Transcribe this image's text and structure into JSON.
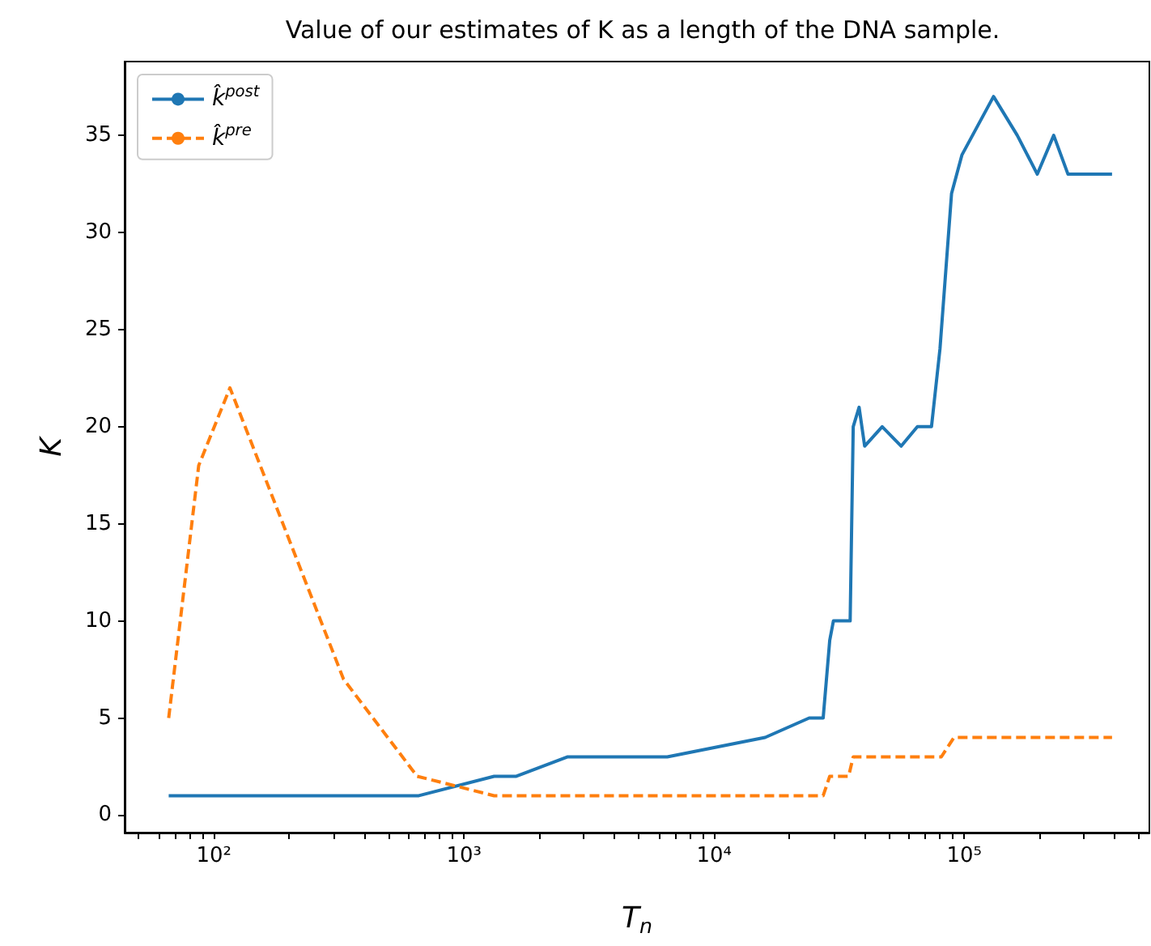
{
  "chart_data": {
    "type": "line",
    "title": "Value of our estimates of K as a length of the DNA sample.",
    "xlabel": "T$_{n}$",
    "ylabel": "K",
    "log": "x",
    "grid": false,
    "legend": "top left",
    "xlim": [
      44,
      550000
    ],
    "ylim": [
      -0.9,
      38.8
    ],
    "xticks": [
      {
        "value": 50,
        "label": null
      },
      {
        "value": 60,
        "label": null
      },
      {
        "value": 70,
        "label": null
      },
      {
        "value": 80,
        "label": null
      },
      {
        "value": 90,
        "label": null
      },
      {
        "value": 100,
        "label": "10²"
      },
      {
        "value": 200,
        "label": null
      },
      {
        "value": 300,
        "label": null
      },
      {
        "value": 400,
        "label": null
      },
      {
        "value": 500,
        "label": null
      },
      {
        "value": 600,
        "label": null
      },
      {
        "value": 700,
        "label": null
      },
      {
        "value": 800,
        "label": null
      },
      {
        "value": 900,
        "label": null
      },
      {
        "value": 1000,
        "label": "10³"
      },
      {
        "value": 2000,
        "label": null
      },
      {
        "value": 3000,
        "label": null
      },
      {
        "value": 4000,
        "label": null
      },
      {
        "value": 5000,
        "label": null
      },
      {
        "value": 6000,
        "label": null
      },
      {
        "value": 7000,
        "label": null
      },
      {
        "value": 8000,
        "label": null
      },
      {
        "value": 9000,
        "label": null
      },
      {
        "value": 10000,
        "label": "10⁴"
      },
      {
        "value": 20000,
        "label": null
      },
      {
        "value": 30000,
        "label": null
      },
      {
        "value": 40000,
        "label": null
      },
      {
        "value": 50000,
        "label": null
      },
      {
        "value": 60000,
        "label": null
      },
      {
        "value": 70000,
        "label": null
      },
      {
        "value": 80000,
        "label": null
      },
      {
        "value": 90000,
        "label": null
      },
      {
        "value": 100000,
        "label": "10⁵"
      },
      {
        "value": 200000,
        "label": null
      },
      {
        "value": 300000,
        "label": null
      },
      {
        "value": 400000,
        "label": null
      },
      {
        "value": 500000,
        "label": null
      }
    ],
    "yticks": [
      0,
      5,
      10,
      15,
      20,
      25,
      30,
      35
    ],
    "series": [
      {
        "name": "k̂$^{post}$",
        "color": "#1f77b4",
        "line_style": "solid",
        "x": [
          66,
          660,
          1320,
          1620,
          2600,
          6500,
          16000,
          24000,
          27300,
          29000,
          30000,
          35000,
          36000,
          38000,
          40000,
          47000,
          56000,
          65000,
          74000,
          80000,
          89000,
          98000,
          131000,
          163000,
          196000,
          228000,
          260000,
          390000
        ],
        "values": [
          1,
          1,
          2,
          2,
          3,
          3,
          4,
          5,
          5,
          9,
          10,
          10,
          20,
          21,
          19,
          20,
          19,
          20,
          20,
          24,
          32,
          34,
          37,
          35,
          33,
          35,
          33,
          33
        ]
      },
      {
        "name": "k̂$^{pre}$",
        "color": "#ff7f0e",
        "line_style": "dashed",
        "x": [
          66,
          87,
          116,
          330,
          650,
          1320,
          27300,
          29000,
          34500,
          36000,
          81000,
          91000,
          390000
        ],
        "values": [
          5,
          18,
          22,
          7,
          2,
          1,
          1,
          2,
          2,
          3,
          3,
          4,
          4
        ]
      }
    ]
  }
}
